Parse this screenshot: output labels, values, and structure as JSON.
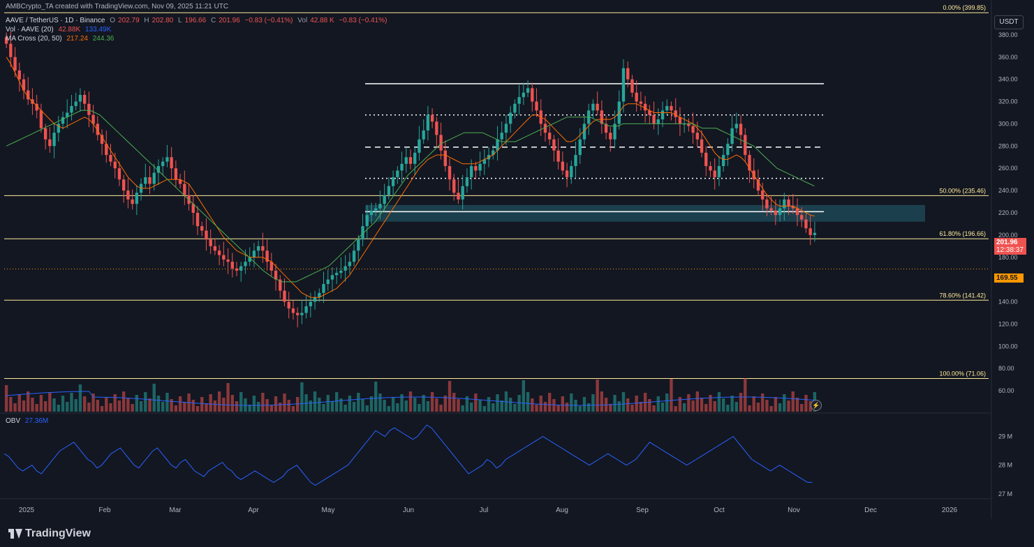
{
  "caption": "AMBCrypto_TA created with TradingView.com, Nov 09, 2025 11:21 UTC",
  "legend": {
    "symbol": "AAVE / TetherUS · 1D · Binance",
    "o_label": "O",
    "o": "202.79",
    "h_label": "H",
    "h": "202.80",
    "l_label": "L",
    "l": "196.66",
    "c_label": "C",
    "c": "201.96",
    "chg": "−0.83 (−0.41%)",
    "vol_label": "Vol",
    "vol": "42.88 K",
    "vol_chg": "−0.83 (−0.41%)",
    "vol_ind": "Vol · AAVE (20)",
    "vol_ind_v1": "42.88K",
    "vol_ind_v2": "133.49K",
    "ma_ind": "MA Cross (20, 50)",
    "ma20": "217.24",
    "ma50": "244.36",
    "obv_label": "OBV",
    "obv": "27.36M"
  },
  "unit": "USDT",
  "branding": "TradingView",
  "current_price": "201.96",
  "countdown": "12:38:37",
  "marker_price": "169.55",
  "alert_icon": "lightning-icon",
  "colors": {
    "background": "#131722",
    "up": "#26a69a",
    "down": "#ef5350",
    "fib": "#ffeb99",
    "ma20": "#ff6d00",
    "ma50": "#4caf50",
    "obv": "#2962ff",
    "volume_ma": "#2962ff",
    "zone": "#1f4e5c"
  },
  "chart_data": {
    "type": "candlestick",
    "y_axis": {
      "min": 40,
      "max": 400,
      "ticks": [
        "380.00",
        "360.00",
        "340.00",
        "320.00",
        "300.00",
        "280.00",
        "260.00",
        "240.00",
        "220.00",
        "200.00",
        "180.00",
        "160.00",
        "140.00",
        "120.00",
        "100.00",
        "80.00",
        "60.00"
      ]
    },
    "x_axis_labels": [
      "2025",
      "Feb",
      "Mar",
      "Apr",
      "May",
      "Jun",
      "Jul",
      "Aug",
      "Sep",
      "Oct",
      "Nov",
      "Dec",
      "2026"
    ],
    "fib_levels": [
      {
        "label": "0.00% (399.85)",
        "value": 399.85
      },
      {
        "label": "50.00% (235.46)",
        "value": 235.46
      },
      {
        "label": "61.80% (196.66)",
        "value": 196.66
      },
      {
        "label": "78.60% (141.42)",
        "value": 141.42
      },
      {
        "label": "100.00% (71.06)",
        "value": 71.06
      }
    ],
    "horizontal_lines": [
      {
        "style": "solid",
        "value": 336
      },
      {
        "style": "dotted",
        "value": 308
      },
      {
        "style": "dashed",
        "value": 279
      },
      {
        "style": "dotted",
        "value": 251
      },
      {
        "style": "solid",
        "value": 221
      }
    ],
    "zone": {
      "from": 212,
      "to": 227
    },
    "close_series": [
      372,
      360,
      348,
      340,
      330,
      322,
      318,
      312,
      296,
      286,
      280,
      292,
      300,
      306,
      310,
      316,
      320,
      326,
      318,
      308,
      300,
      290,
      282,
      272,
      266,
      260,
      250,
      240,
      232,
      228,
      238,
      246,
      252,
      246,
      256,
      262,
      266,
      270,
      260,
      250,
      246,
      236,
      228,
      220,
      208,
      204,
      196,
      190,
      186,
      182,
      178,
      176,
      170,
      168,
      172,
      176,
      180,
      186,
      190,
      186,
      176,
      168,
      160,
      150,
      140,
      134,
      130,
      128,
      130,
      136,
      140,
      144,
      148,
      156,
      160,
      164,
      166,
      168,
      172,
      176,
      186,
      196,
      208,
      218,
      222,
      224,
      228,
      236,
      244,
      252,
      258,
      264,
      270,
      264,
      274,
      286,
      294,
      308,
      302,
      290,
      276,
      262,
      250,
      238,
      232,
      244,
      252,
      262,
      258,
      264,
      268,
      272,
      276,
      286,
      292,
      300,
      310,
      318,
      324,
      328,
      332,
      320,
      312,
      300,
      292,
      286,
      276,
      266,
      258,
      252,
      262,
      272,
      286,
      300,
      312,
      318,
      312,
      300,
      292,
      286,
      300,
      320,
      350,
      340,
      328,
      320,
      318,
      312,
      308,
      300,
      304,
      312,
      316,
      312,
      306,
      300,
      300,
      298,
      292,
      286,
      274,
      262,
      258,
      252,
      262,
      272,
      282,
      296,
      300,
      290,
      272,
      258,
      250,
      240,
      232,
      224,
      222,
      218,
      224,
      232,
      226,
      224,
      218,
      214,
      206,
      200,
      202
    ],
    "ma20_series": [
      360,
      354,
      346,
      338,
      330,
      324,
      320,
      316,
      312,
      308,
      304,
      300,
      298,
      296,
      298,
      300,
      302,
      304,
      306,
      304,
      300,
      294,
      288,
      282,
      276,
      270,
      264,
      258,
      252,
      248,
      244,
      242,
      242,
      242,
      244,
      246,
      248,
      250,
      250,
      250,
      250,
      248,
      246,
      240,
      234,
      228,
      222,
      216,
      210,
      204,
      198,
      194,
      190,
      186,
      184,
      182,
      180,
      180,
      180,
      180,
      178,
      176,
      172,
      168,
      164,
      160,
      156,
      152,
      148,
      146,
      144,
      144,
      144,
      146,
      148,
      150,
      152,
      156,
      160,
      164,
      170,
      176,
      182,
      188,
      194,
      200,
      206,
      212,
      218,
      224,
      230,
      236,
      242,
      248,
      254,
      260,
      264,
      268,
      270,
      272,
      272,
      272,
      270,
      268,
      266,
      264,
      264,
      264,
      264,
      266,
      268,
      270,
      272,
      276,
      280,
      284,
      288,
      292,
      296,
      300,
      304,
      308,
      308,
      306,
      304,
      300,
      296,
      292,
      288,
      284,
      284,
      286,
      290,
      294,
      298,
      302,
      304,
      304,
      304,
      304,
      306,
      310,
      316,
      318,
      318,
      318,
      316,
      314,
      312,
      310,
      310,
      310,
      310,
      310,
      308,
      306,
      304,
      302,
      300,
      296,
      292,
      286,
      280,
      274,
      270,
      268,
      268,
      270,
      272,
      270,
      266,
      260,
      254,
      248,
      242,
      236,
      232,
      228,
      226,
      226,
      226,
      226,
      224,
      222,
      220,
      218,
      217
    ],
    "ma50_series": [
      280,
      282,
      284,
      286,
      288,
      290,
      292,
      294,
      296,
      298,
      300,
      302,
      304,
      306,
      308,
      310,
      312,
      312,
      312,
      310,
      308,
      304,
      300,
      296,
      292,
      288,
      284,
      280,
      276,
      272,
      268,
      264,
      260,
      256,
      252,
      248,
      244,
      240,
      236,
      232,
      228,
      224,
      220,
      216,
      212,
      208,
      204,
      200,
      196,
      192,
      188,
      184,
      180,
      176,
      172,
      168,
      165,
      162,
      160,
      158,
      158,
      158,
      158,
      160,
      162,
      164,
      166,
      168,
      170,
      172,
      176,
      180,
      184,
      188,
      192,
      196,
      200,
      204,
      208,
      212,
      218,
      224,
      230,
      236,
      242,
      248,
      254,
      258,
      262,
      266,
      270,
      274,
      278,
      282,
      284,
      286,
      288,
      290,
      292,
      292,
      292,
      292,
      292,
      290,
      288,
      286,
      284,
      284,
      284,
      284,
      286,
      288,
      290,
      292,
      294,
      296,
      298,
      300,
      302,
      304,
      306,
      306,
      306,
      306,
      306,
      306,
      304,
      302,
      300,
      298,
      298,
      298,
      300,
      300,
      300,
      300,
      300,
      300,
      300,
      300,
      300,
      300,
      300,
      300,
      300,
      300,
      300,
      300,
      298,
      296,
      296,
      296,
      296,
      294,
      292,
      290,
      288,
      286,
      284,
      282,
      280,
      276,
      272,
      268,
      264,
      260,
      258,
      256,
      254,
      252,
      250,
      248,
      246,
      244
    ],
    "obv_series": [
      28.4,
      28.3,
      28.1,
      27.9,
      27.8,
      27.9,
      28.0,
      27.8,
      27.7,
      27.9,
      28.1,
      28.3,
      28.5,
      28.6,
      28.7,
      28.8,
      28.6,
      28.4,
      28.2,
      28.1,
      27.9,
      28.0,
      28.2,
      28.4,
      28.5,
      28.6,
      28.4,
      28.2,
      28.0,
      27.9,
      28.1,
      28.3,
      28.5,
      28.6,
      28.4,
      28.2,
      28.0,
      27.9,
      28.1,
      28.2,
      28.0,
      27.8,
      27.7,
      27.6,
      27.8,
      27.9,
      28.0,
      28.1,
      27.9,
      27.8,
      27.6,
      27.5,
      27.6,
      27.7,
      27.8,
      27.7,
      27.6,
      27.5,
      27.4,
      27.5,
      27.6,
      27.8,
      27.9,
      28.0,
      27.8,
      27.6,
      27.4,
      27.3,
      27.4,
      27.5,
      27.6,
      27.7,
      27.8,
      27.9,
      28.0,
      28.2,
      28.4,
      28.6,
      28.8,
      29.0,
      29.2,
      29.1,
      29.0,
      29.2,
      29.3,
      29.2,
      29.1,
      29.0,
      28.9,
      29.0,
      29.2,
      29.4,
      29.3,
      29.1,
      28.9,
      28.7,
      28.5,
      28.3,
      28.1,
      27.9,
      27.7,
      27.8,
      27.9,
      28.0,
      28.2,
      28.1,
      27.9,
      28.0,
      28.2,
      28.3,
      28.4,
      28.5,
      28.6,
      28.7,
      28.8,
      28.9,
      29.0,
      28.9,
      28.8,
      28.7,
      28.6,
      28.5,
      28.4,
      28.3,
      28.2,
      28.1,
      28.0,
      28.1,
      28.2,
      28.3,
      28.4,
      28.3,
      28.2,
      28.1,
      28.0,
      28.1,
      28.2,
      28.4,
      28.6,
      28.8,
      28.7,
      28.6,
      28.5,
      28.4,
      28.3,
      28.2,
      28.1,
      28.0,
      28.1,
      28.2,
      28.3,
      28.4,
      28.5,
      28.6,
      28.7,
      28.8,
      28.9,
      29.0,
      28.8,
      28.6,
      28.4,
      28.2,
      28.1,
      28.0,
      27.9,
      27.8,
      27.9,
      28.0,
      27.9,
      27.8,
      27.7,
      27.6,
      27.5,
      27.4,
      27.4
    ],
    "obv_axis": [
      "29 M",
      "28 M",
      "27 M"
    ]
  }
}
